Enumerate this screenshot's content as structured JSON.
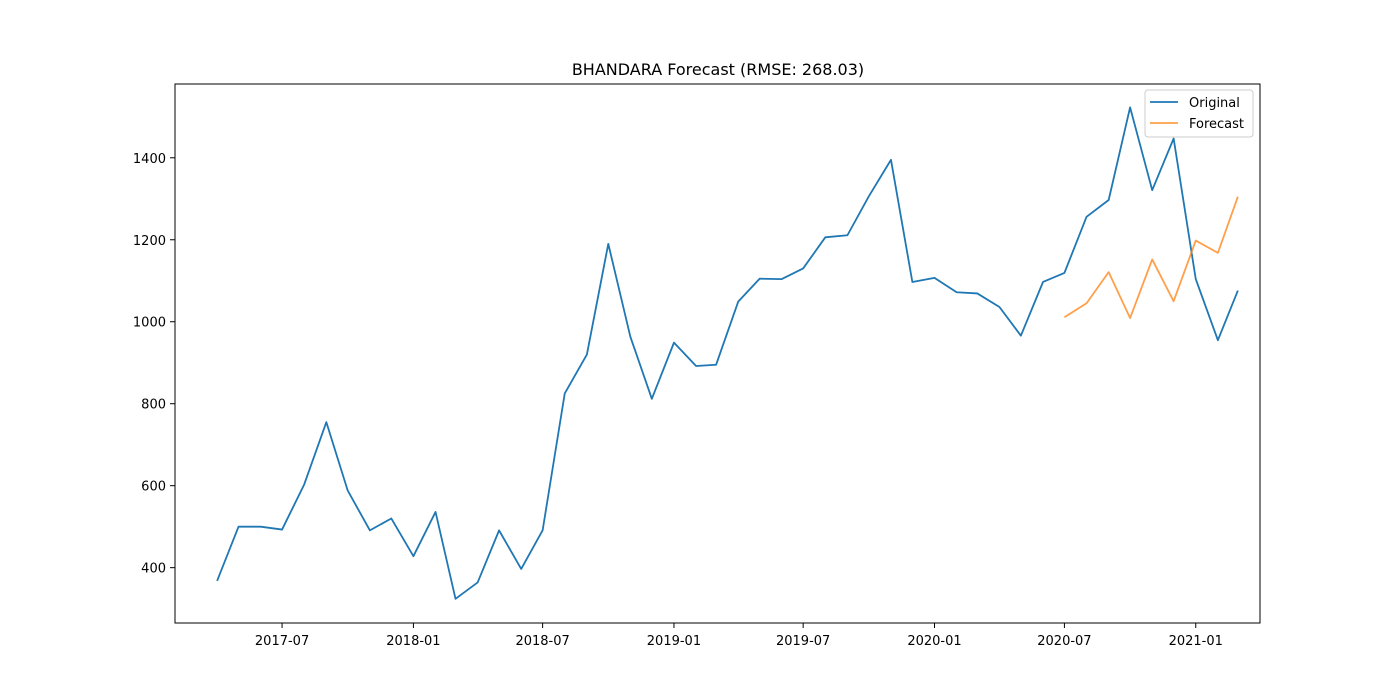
{
  "chart_data": {
    "type": "line",
    "title": "BHANDARA Forecast (RMSE: 268.03)",
    "xlabel": "",
    "ylabel": "",
    "x_axis_type": "date",
    "xlim": [
      "2017-02-01",
      "2021-04-01"
    ],
    "ylim": [
      265,
      1580
    ],
    "x_ticks": [
      "2017-07",
      "2018-01",
      "2018-07",
      "2019-01",
      "2019-07",
      "2020-01",
      "2020-07",
      "2021-01"
    ],
    "y_ticks": [
      400,
      600,
      800,
      1000,
      1200,
      1400
    ],
    "grid": false,
    "legend_position": "top-right",
    "series": [
      {
        "name": "Original",
        "color": "#1f77b4",
        "x": [
          "2017-04",
          "2017-05",
          "2017-06",
          "2017-07",
          "2017-08",
          "2017-09",
          "2017-10",
          "2017-11",
          "2017-12",
          "2018-01",
          "2018-02",
          "2018-03",
          "2018-04",
          "2018-05",
          "2018-06",
          "2018-07",
          "2018-08",
          "2018-09",
          "2018-10",
          "2018-11",
          "2018-12",
          "2019-01",
          "2019-02",
          "2019-03",
          "2019-04",
          "2019-05",
          "2019-06",
          "2019-07",
          "2019-08",
          "2019-09",
          "2019-10",
          "2019-11",
          "2019-12",
          "2020-01",
          "2020-02",
          "2020-03",
          "2020-04",
          "2020-05",
          "2020-06",
          "2020-07",
          "2020-08",
          "2020-09",
          "2020-10",
          "2020-11",
          "2020-12",
          "2021-01",
          "2021-02",
          "2021-03"
        ],
        "values": [
          368,
          500,
          500,
          493,
          603,
          755,
          588,
          491,
          520,
          428,
          536,
          324,
          364,
          491,
          397,
          491,
          825,
          920,
          1190,
          963,
          812,
          949,
          892,
          895,
          1049,
          1105,
          1104,
          1130,
          1206,
          1211,
          1306,
          1395,
          1097,
          1107,
          1072,
          1069,
          1036,
          966,
          1097,
          1119,
          1256,
          1297,
          1523,
          1321,
          1447,
          1104,
          955,
          1076
        ]
      },
      {
        "name": "Forecast",
        "color": "#ff7f0e",
        "x": [
          "2020-07",
          "2020-08",
          "2020-09",
          "2020-10",
          "2020-11",
          "2020-12",
          "2021-01",
          "2021-02",
          "2021-03"
        ],
        "values": [
          1011,
          1045,
          1121,
          1009,
          1152,
          1050,
          1198,
          1168,
          1305
        ]
      }
    ]
  }
}
